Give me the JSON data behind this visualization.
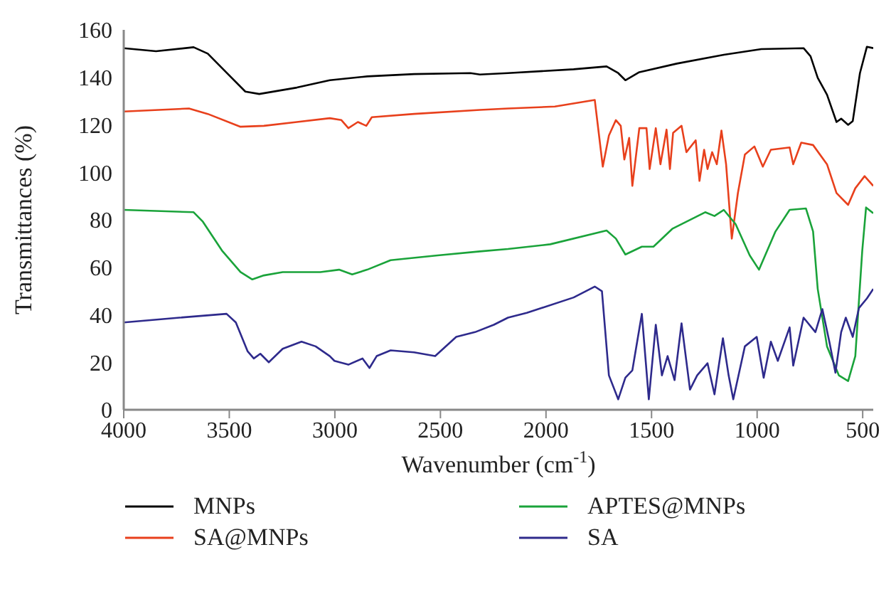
{
  "chart_data": {
    "type": "line",
    "xlabel": "Wavenumber (cm$^{-1}$)",
    "ylabel": "Transmittances (%)",
    "xlim": [
      4000,
      450
    ],
    "xticks": [
      4000,
      3500,
      3000,
      2500,
      2000,
      1500,
      1000,
      500
    ],
    "ylim": [
      0,
      160
    ],
    "yticks": [
      0,
      20,
      40,
      60,
      80,
      100,
      120,
      140,
      160
    ],
    "grid": false,
    "legend": "bottom",
    "marker": "none",
    "line_style": "solid",
    "series": [
      {
        "name": "MNPs",
        "color": "#000000",
        "x": [
          4000,
          3847,
          3669,
          3602,
          3513,
          3424,
          3358,
          3180,
          3024,
          2847,
          2625,
          2358,
          2313,
          2180,
          1869,
          1713,
          1658,
          1624,
          1558,
          1380,
          1158,
          980,
          780,
          747,
          713,
          669,
          624,
          602,
          569,
          547,
          513,
          480,
          450
        ],
        "values": [
          152.3,
          151,
          152.7,
          150,
          142,
          134,
          133,
          135.7,
          138.8,
          140.4,
          141.4,
          141.8,
          141.2,
          141.8,
          143.4,
          144.6,
          141.8,
          138.8,
          142.2,
          145.8,
          149.5,
          151.9,
          152.3,
          148.9,
          139.8,
          132.7,
          121.2,
          122.6,
          120,
          121.6,
          141.8,
          152.9,
          152.3
        ]
      },
      {
        "name": "SA@MNPs",
        "color": "#e8401c",
        "x": [
          4000,
          3691,
          3602,
          3447,
          3336,
          3180,
          3024,
          2969,
          2936,
          2891,
          2851,
          2825,
          2625,
          2313,
          2180,
          1958,
          1769,
          1731,
          1702,
          1669,
          1646,
          1629,
          1606,
          1591,
          1558,
          1524,
          1509,
          1480,
          1458,
          1429,
          1413,
          1398,
          1358,
          1335,
          1291,
          1273,
          1251,
          1235,
          1213,
          1191,
          1169,
          1147,
          1120,
          1091,
          1058,
          1013,
          973,
          935,
          846,
          829,
          791,
          735,
          669,
          624,
          569,
          535,
          491,
          450
        ],
        "values": [
          125.6,
          126.9,
          124.6,
          119.2,
          119.6,
          121.2,
          122.8,
          122,
          118.6,
          121.2,
          119.6,
          123.2,
          124.6,
          126.3,
          126.9,
          127.7,
          130.5,
          102.4,
          115.5,
          122,
          119.6,
          105.4,
          114.5,
          94.3,
          118.6,
          118.6,
          101.4,
          118.6,
          103.4,
          118,
          101.4,
          116.6,
          119.6,
          108.5,
          113.5,
          96.4,
          109.5,
          101.4,
          108.5,
          103.4,
          117.6,
          103.4,
          72.1,
          91.3,
          107.5,
          110.9,
          102.4,
          109.5,
          110.5,
          103.4,
          112.5,
          111.5,
          103.4,
          91.3,
          86.3,
          93.3,
          98.4,
          94.3
        ]
      },
      {
        "name": "APTES@MNPs",
        "color": "#1aa33a",
        "x": [
          4000,
          3669,
          3625,
          3535,
          3447,
          3391,
          3336,
          3247,
          3069,
          2980,
          2918,
          2847,
          2736,
          2513,
          2313,
          2180,
          1980,
          1713,
          1669,
          1624,
          1546,
          1491,
          1402,
          1246,
          1202,
          1158,
          1102,
          1035,
          991,
          913,
          846,
          769,
          735,
          713,
          669,
          613,
          569,
          535,
          502,
          484,
          450
        ],
        "values": [
          84.2,
          83.2,
          79.2,
          67.1,
          58,
          54.9,
          56.6,
          58,
          58,
          59,
          57,
          59,
          63,
          65,
          66.7,
          67.7,
          69.7,
          75.5,
          72.1,
          65.4,
          68.7,
          68.7,
          76.2,
          83.2,
          81.6,
          84.2,
          78.2,
          65,
          59,
          75.1,
          84.2,
          84.8,
          75.1,
          50.9,
          26.7,
          14.5,
          12.1,
          22.6,
          67.1,
          85.2,
          82.8
        ]
      },
      {
        "name": "SA",
        "color": "#2e2a8c",
        "x": [
          4000,
          3736,
          3513,
          3469,
          3413,
          3384,
          3353,
          3313,
          3247,
          3158,
          3091,
          3024,
          3002,
          2936,
          2869,
          2836,
          2802,
          2736,
          2625,
          2525,
          2425,
          2336,
          2247,
          2180,
          2091,
          1869,
          1769,
          1735,
          1702,
          1658,
          1624,
          1591,
          1546,
          1513,
          1480,
          1451,
          1424,
          1391,
          1358,
          1318,
          1284,
          1235,
          1202,
          1162,
          1135,
          1113,
          1058,
          1002,
          969,
          935,
          902,
          846,
          829,
          780,
          724,
          691,
          658,
          629,
          602,
          580,
          547,
          518,
          480,
          450
        ],
        "values": [
          36.8,
          38.8,
          40.4,
          36.8,
          24.6,
          21.6,
          23.6,
          20,
          25.7,
          28.7,
          26.7,
          22.6,
          20.6,
          19,
          21.6,
          17.6,
          22.6,
          25,
          24.2,
          22.6,
          30.7,
          32.7,
          35.8,
          38.8,
          40.8,
          47.3,
          51.9,
          49.9,
          14.5,
          4.4,
          13.5,
          16.6,
          40.4,
          4.4,
          35.8,
          14.5,
          22.6,
          12.5,
          36.4,
          8.5,
          14.5,
          19.6,
          6.5,
          30.1,
          14.5,
          4.4,
          26.7,
          30.7,
          13.5,
          28.7,
          20.6,
          34.7,
          18.6,
          38.8,
          32.7,
          42.4,
          28.7,
          15.6,
          32.7,
          38.8,
          30.7,
          42.8,
          46.9,
          50.9
        ]
      }
    ]
  }
}
